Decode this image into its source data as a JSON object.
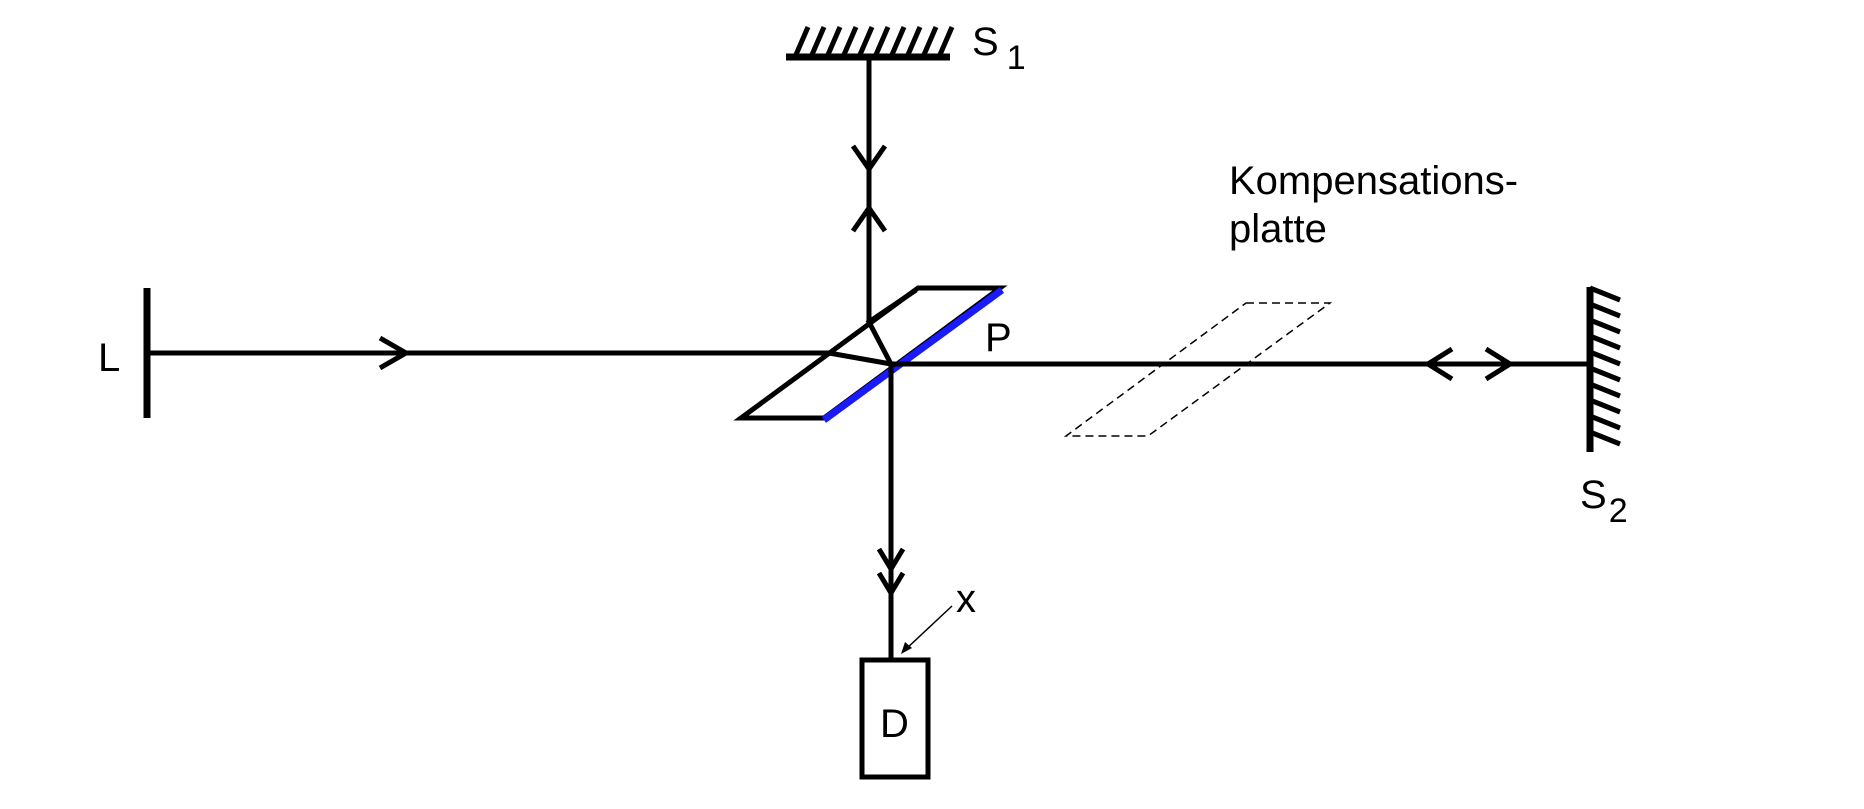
{
  "labels": {
    "source": "L",
    "mirror1_letter": "S",
    "mirror1_sub": "1",
    "mirror2_letter": "S",
    "mirror2_sub": "2",
    "plate": "P",
    "compensation_line1": "Kompensations-",
    "compensation_line2": "platte",
    "detector": "D",
    "point": "x"
  },
  "colors": {
    "line": "#000000",
    "mirror_coating": "#1a1aff"
  }
}
